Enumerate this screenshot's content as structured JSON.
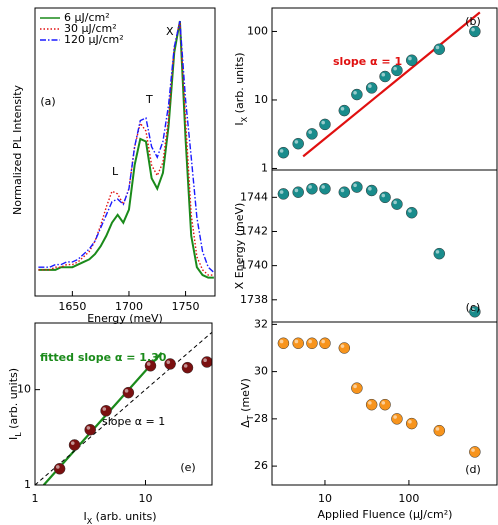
{
  "chart_data": [
    {
      "type": "line",
      "label": "(a)",
      "xlabel": "Energy (meV)",
      "ylabel": "Normalized PL Intensity",
      "x": [
        1620,
        1625,
        1630,
        1635,
        1640,
        1645,
        1650,
        1655,
        1660,
        1665,
        1670,
        1675,
        1680,
        1685,
        1690,
        1695,
        1700,
        1705,
        1710,
        1715,
        1720,
        1725,
        1730,
        1735,
        1740,
        1745,
        1750,
        1755,
        1760,
        1765,
        1770,
        1775
      ],
      "series": [
        {
          "name": "6 μJ/cm²",
          "color": "#1a8a1a",
          "dash": "solid",
          "values": [
            0.05,
            0.05,
            0.05,
            0.05,
            0.06,
            0.06,
            0.06,
            0.07,
            0.08,
            0.09,
            0.11,
            0.14,
            0.18,
            0.23,
            0.26,
            0.23,
            0.28,
            0.45,
            0.55,
            0.54,
            0.4,
            0.36,
            0.42,
            0.6,
            0.88,
            1.0,
            0.55,
            0.18,
            0.06,
            0.03,
            0.02,
            0.02
          ]
        },
        {
          "name": "30 μJ/cm²",
          "color": "#e01010",
          "dash": "dotted",
          "values": [
            0.05,
            0.05,
            0.05,
            0.06,
            0.06,
            0.07,
            0.07,
            0.08,
            0.1,
            0.12,
            0.16,
            0.22,
            0.29,
            0.35,
            0.34,
            0.3,
            0.36,
            0.52,
            0.61,
            0.58,
            0.45,
            0.41,
            0.46,
            0.63,
            0.9,
            1.0,
            0.62,
            0.26,
            0.1,
            0.05,
            0.03,
            0.03
          ]
        },
        {
          "name": "120 μJ/cm²",
          "color": "#1a1aff",
          "dash": "dashdot",
          "values": [
            0.06,
            0.06,
            0.06,
            0.07,
            0.07,
            0.08,
            0.08,
            0.09,
            0.11,
            0.13,
            0.16,
            0.21,
            0.26,
            0.31,
            0.32,
            0.3,
            0.36,
            0.52,
            0.62,
            0.63,
            0.52,
            0.48,
            0.54,
            0.68,
            0.9,
            1.0,
            0.7,
            0.48,
            0.25,
            0.12,
            0.06,
            0.04
          ]
        }
      ],
      "xlim": [
        1617,
        1776
      ],
      "xticks": [
        1650,
        1700,
        1750
      ],
      "ylim": [
        -0.05,
        1.05
      ],
      "annotations": [
        {
          "text": "L"
        },
        {
          "text": "T"
        },
        {
          "text": "X"
        }
      ]
    },
    {
      "type": "scatter",
      "label": "(b)",
      "ylabel": [
        "I",
        "X",
        " (arb. units)"
      ],
      "color": "#1a8c8c",
      "x": [
        3.2,
        4.8,
        7,
        10,
        17,
        24,
        36,
        52,
        72,
        108,
        230,
        610
      ],
      "values": [
        1.7,
        2.3,
        3.2,
        4.4,
        7,
        12,
        15,
        22,
        27,
        38,
        55,
        100
      ],
      "xlog": true,
      "ylog": true,
      "xlim": [
        2.34,
        1120
      ],
      "ylim": [
        0.95,
        220
      ],
      "yticks": [
        1,
        10,
        100
      ],
      "lines": [
        {
          "x": [
            5.5,
            700
          ],
          "values": [
            1.5,
            190
          ],
          "color": "#e01010",
          "dash": "solid"
        }
      ],
      "annotations": [
        {
          "text": "slope α = 1",
          "color": "#e01010"
        }
      ]
    },
    {
      "type": "scatter",
      "label": "(c)",
      "ylabel": "X Energy (meV)",
      "color": "#1a8c8c",
      "x": [
        3.2,
        4.8,
        7,
        10,
        17,
        24,
        36,
        52,
        72,
        108,
        230,
        610
      ],
      "values": [
        1744.2,
        1744.3,
        1744.5,
        1744.5,
        1744.3,
        1744.6,
        1744.4,
        1744.0,
        1743.6,
        1743.1,
        1740.7,
        1737.3
      ],
      "xlog": true,
      "xlim": [
        2.34,
        1120
      ],
      "ylim": [
        1736.7,
        1745.6
      ],
      "yticks": [
        1738,
        1740,
        1742,
        1744
      ]
    },
    {
      "type": "scatter",
      "label": "(d)",
      "ylabel": [
        "Δ",
        "T",
        " (meV)"
      ],
      "xlabel": "Applied Fluence (μJ/cm²)",
      "color": "#f7941d",
      "x": [
        3.2,
        4.8,
        7,
        10,
        17,
        24,
        36,
        52,
        72,
        108,
        230,
        610
      ],
      "values": [
        31.2,
        31.2,
        31.2,
        31.2,
        31.0,
        29.3,
        28.6,
        28.6,
        28.0,
        27.8,
        27.5,
        26.6
      ],
      "xlog": true,
      "xlim": [
        2.34,
        1120
      ],
      "xticks": [
        10,
        100
      ],
      "ylim": [
        25.2,
        32.1
      ],
      "yticks": [
        26,
        28,
        30,
        32
      ]
    },
    {
      "type": "scatter",
      "label": "(e)",
      "xlabel": [
        "I",
        "X",
        " (arb. units)"
      ],
      "ylabel": [
        "I",
        "L",
        " (arb. units)"
      ],
      "color": "#7a1010",
      "x": [
        1.67,
        2.28,
        3.16,
        4.4,
        7.0,
        11.1,
        16.7,
        24,
        36
      ],
      "values": [
        1.48,
        2.63,
        3.8,
        6.0,
        9.3,
        17.8,
        18.6,
        17,
        19.5
      ],
      "xlog": true,
      "ylog": true,
      "xlim": [
        1,
        40
      ],
      "ylim": [
        1,
        50
      ],
      "xticks": [
        1,
        10
      ],
      "yticks": [
        1,
        10
      ],
      "lines": [
        {
          "x": [
            1.2,
            14
          ],
          "values": [
            1.0,
            24.4
          ],
          "color": "#1a8a1a",
          "dash": "solid"
        },
        {
          "x": [
            1,
            40
          ],
          "values": [
            1,
            40
          ],
          "color": "#000000",
          "dash": "dashed"
        }
      ],
      "annotations": [
        {
          "text": "fitted slope α = 1.30",
          "color": "#1a8a1a"
        },
        {
          "text": "slope α = 1",
          "color": "#000000"
        }
      ]
    }
  ]
}
